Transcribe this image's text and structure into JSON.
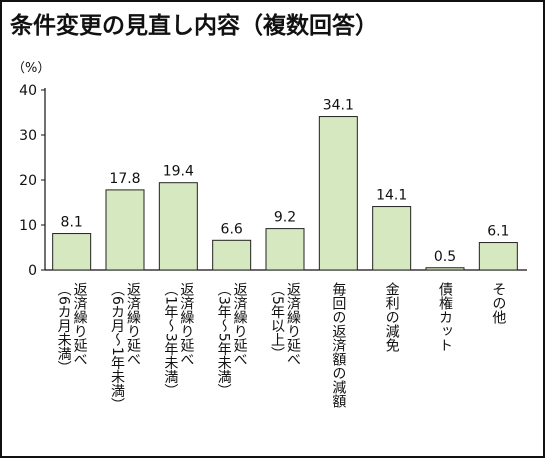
{
  "chart_data": {
    "type": "bar",
    "title": "条件変更の見直し内容（複数回答）",
    "y_label": "（%）",
    "categories": [
      [
        "返済繰り延べ",
        "（6カ月未満）"
      ],
      [
        "返済繰り延べ",
        "（6カ月～1年未満）"
      ],
      [
        "返済繰り延べ",
        "（1年～3年未満）"
      ],
      [
        "返済繰り延べ",
        "（3年～5年未満）"
      ],
      [
        "返済繰り延べ",
        "（5年以上）"
      ],
      [
        "毎回の返済額の減額"
      ],
      [
        "金利の減免"
      ],
      [
        "債権カット"
      ],
      [
        "その他"
      ]
    ],
    "values": [
      8.1,
      17.8,
      19.4,
      6.6,
      9.2,
      34.1,
      14.1,
      0.5,
      6.1
    ],
    "color": "#d5e8bf",
    "ylim": [
      0,
      40
    ],
    "yticks": [
      0,
      10,
      20,
      30,
      40
    ],
    "grid": false
  }
}
